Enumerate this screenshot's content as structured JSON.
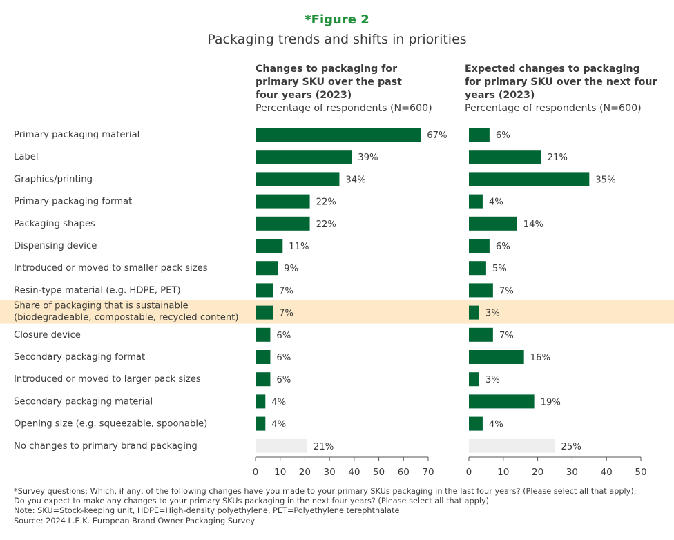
{
  "figure_label": "*Figure 2",
  "figure_title": "Packaging trends and shifts in priorities",
  "panels": [
    {
      "heading_part1": "Changes to packaging for primary SKU over the",
      "heading_underlined": "past four years",
      "heading_part2": "(2023)",
      "subheading": "Percentage of respondents (N=600)"
    },
    {
      "heading_part1": "Expected changes to packaging for primary SKU over the",
      "heading_underlined": "next four years",
      "heading_part2": "(2023)",
      "subheading": "Percentage of respondents (N=600)"
    }
  ],
  "footnotes": [
    "*Survey questions: Which, if any, of the following changes have you made to your primary SKUs packaging in the last four years? (Please select all that apply);",
    "Do you expect to make any changes to your primary SKUs packaging in the next four years? (Please select all that apply)",
    "Note: SKU=Stock-keeping unit, HDPE=High-density polyethylene, PET=Polyethylene terephthalate",
    "Source: 2024 L.E.K. European Brand Owner Packaging Survey"
  ],
  "colors": {
    "bar": "#006633",
    "bar_nochange": "#eeeeee",
    "highlight_band": "#fde9c8",
    "label_text": "#3b3b3b"
  },
  "chart_data": [
    {
      "type": "bar",
      "orientation": "horizontal",
      "title": "Changes to packaging for primary SKU over the past four years (2023)",
      "xlabel": "Percentage of respondents (N=600)",
      "xlim": [
        0,
        70
      ],
      "xticks": [
        0,
        10,
        20,
        30,
        40,
        50,
        60,
        70
      ],
      "categories": [
        "Primary packaging material",
        "Label",
        "Graphics/printing",
        "Primary packaging format",
        "Packaging shapes",
        "Dispensing device",
        "Introduced or moved to smaller pack sizes",
        "Resin-type material (e.g. HDPE, PET)",
        "Share of packaging that is sustainable (biodegradeable, compostable, recycled content)",
        "Closure device",
        "Secondary packaging format",
        "Introduced or moved to larger pack sizes",
        "Secondary packaging material",
        "Opening size (e.g. squeezable, spoonable)",
        "No changes to primary brand packaging"
      ],
      "values": [
        67,
        39,
        34,
        22,
        22,
        11,
        9,
        7,
        7,
        6,
        6,
        6,
        4,
        4,
        21
      ],
      "value_labels": [
        "67%",
        "39%",
        "34%",
        "22%",
        "22%",
        "11%",
        "9%",
        "7%",
        "7%",
        "6%",
        "6%",
        "6%",
        "4%",
        "4%",
        "21%"
      ],
      "highlighted_category": "Share of packaging that is sustainable (biodegradeable, compostable, recycled content)",
      "muted_category": "No changes to primary brand packaging",
      "grid": false
    },
    {
      "type": "bar",
      "orientation": "horizontal",
      "title": "Expected changes to packaging for primary SKU over the next four years (2023)",
      "xlabel": "Percentage of respondents (N=600)",
      "xlim": [
        0,
        50
      ],
      "xticks": [
        0,
        10,
        20,
        30,
        40,
        50
      ],
      "categories": [
        "Primary packaging material",
        "Label",
        "Graphics/printing",
        "Primary packaging format",
        "Packaging shapes",
        "Dispensing device",
        "Introduced or moved to smaller pack sizes",
        "Resin-type material (e.g. HDPE, PET)",
        "Share of packaging that is sustainable (biodegradeable, compostable, recycled content)",
        "Closure device",
        "Secondary packaging format",
        "Introduced or moved to larger pack sizes",
        "Secondary packaging material",
        "Opening size (e.g. squeezable, spoonable)",
        "No changes to primary brand packaging"
      ],
      "values": [
        6,
        21,
        35,
        4,
        14,
        6,
        5,
        7,
        3,
        7,
        16,
        3,
        19,
        4,
        25
      ],
      "value_labels": [
        "6%",
        "21%",
        "35%",
        "4%",
        "14%",
        "6%",
        "5%",
        "7%",
        "3%",
        "7%",
        "16%",
        "3%",
        "19%",
        "4%",
        "25%"
      ],
      "highlighted_category": "Share of packaging that is sustainable (biodegradeable, compostable, recycled content)",
      "muted_category": "No changes to primary brand packaging",
      "grid": false
    }
  ]
}
